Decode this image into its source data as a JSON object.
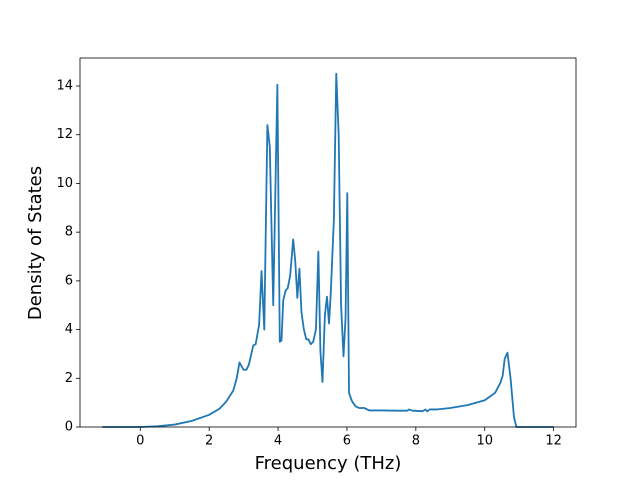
{
  "chart_data": {
    "type": "line",
    "xlabel": "Frequency (THz)",
    "ylabel": "Density of States",
    "color": "#1f77b4",
    "x": [
      -1.1,
      0,
      0.5,
      1,
      1.5,
      2,
      2.3,
      2.5,
      2.7,
      2.8,
      2.88,
      3.0,
      3.08,
      3.15,
      3.28,
      3.35,
      3.45,
      3.52,
      3.6,
      3.69,
      3.76,
      3.86,
      3.98,
      4.05,
      4.1,
      4.15,
      4.22,
      4.28,
      4.35,
      4.44,
      4.5,
      4.56,
      4.62,
      4.68,
      4.75,
      4.82,
      4.88,
      4.95,
      5.02,
      5.1,
      5.17,
      5.23,
      5.29,
      5.36,
      5.42,
      5.48,
      5.53,
      5.62,
      5.69,
      5.76,
      5.83,
      5.9,
      5.96,
      6.01,
      6.06,
      6.15,
      6.25,
      6.35,
      6.5,
      6.65,
      7,
      7.5,
      7.75,
      7.8,
      7.9,
      8.2,
      8.28,
      8.33,
      8.4,
      8.6,
      9,
      9.5,
      10,
      10.3,
      10.45,
      10.52,
      10.58,
      10.66,
      10.75,
      10.85,
      10.92,
      12
    ],
    "values": [
      0,
      0,
      0.03,
      0.1,
      0.25,
      0.5,
      0.75,
      1.05,
      1.5,
      2.0,
      2.65,
      2.35,
      2.35,
      2.55,
      3.35,
      3.4,
      4.2,
      6.4,
      4.0,
      12.4,
      11.5,
      5.0,
      14.05,
      3.5,
      3.55,
      5.2,
      5.6,
      5.7,
      6.2,
      7.7,
      6.8,
      5.3,
      6.5,
      4.7,
      4.0,
      3.6,
      3.6,
      3.4,
      3.5,
      4.0,
      7.2,
      3.1,
      1.85,
      4.6,
      5.35,
      4.25,
      5.5,
      8.5,
      14.5,
      12.0,
      5.0,
      2.9,
      4.5,
      9.6,
      1.4,
      1.05,
      0.85,
      0.78,
      0.78,
      0.68,
      0.68,
      0.67,
      0.67,
      0.72,
      0.67,
      0.65,
      0.72,
      0.64,
      0.72,
      0.72,
      0.78,
      0.9,
      1.1,
      1.4,
      1.8,
      2.1,
      2.8,
      3.05,
      2.0,
      0.4,
      0,
      0
    ],
    "xlim": [
      -1.75,
      12.65
    ],
    "ylim": [
      0,
      15.15
    ],
    "xticks": [
      0,
      2,
      4,
      6,
      8,
      10,
      12
    ],
    "yticks": [
      0,
      2,
      4,
      6,
      8,
      10,
      12,
      14
    ]
  }
}
